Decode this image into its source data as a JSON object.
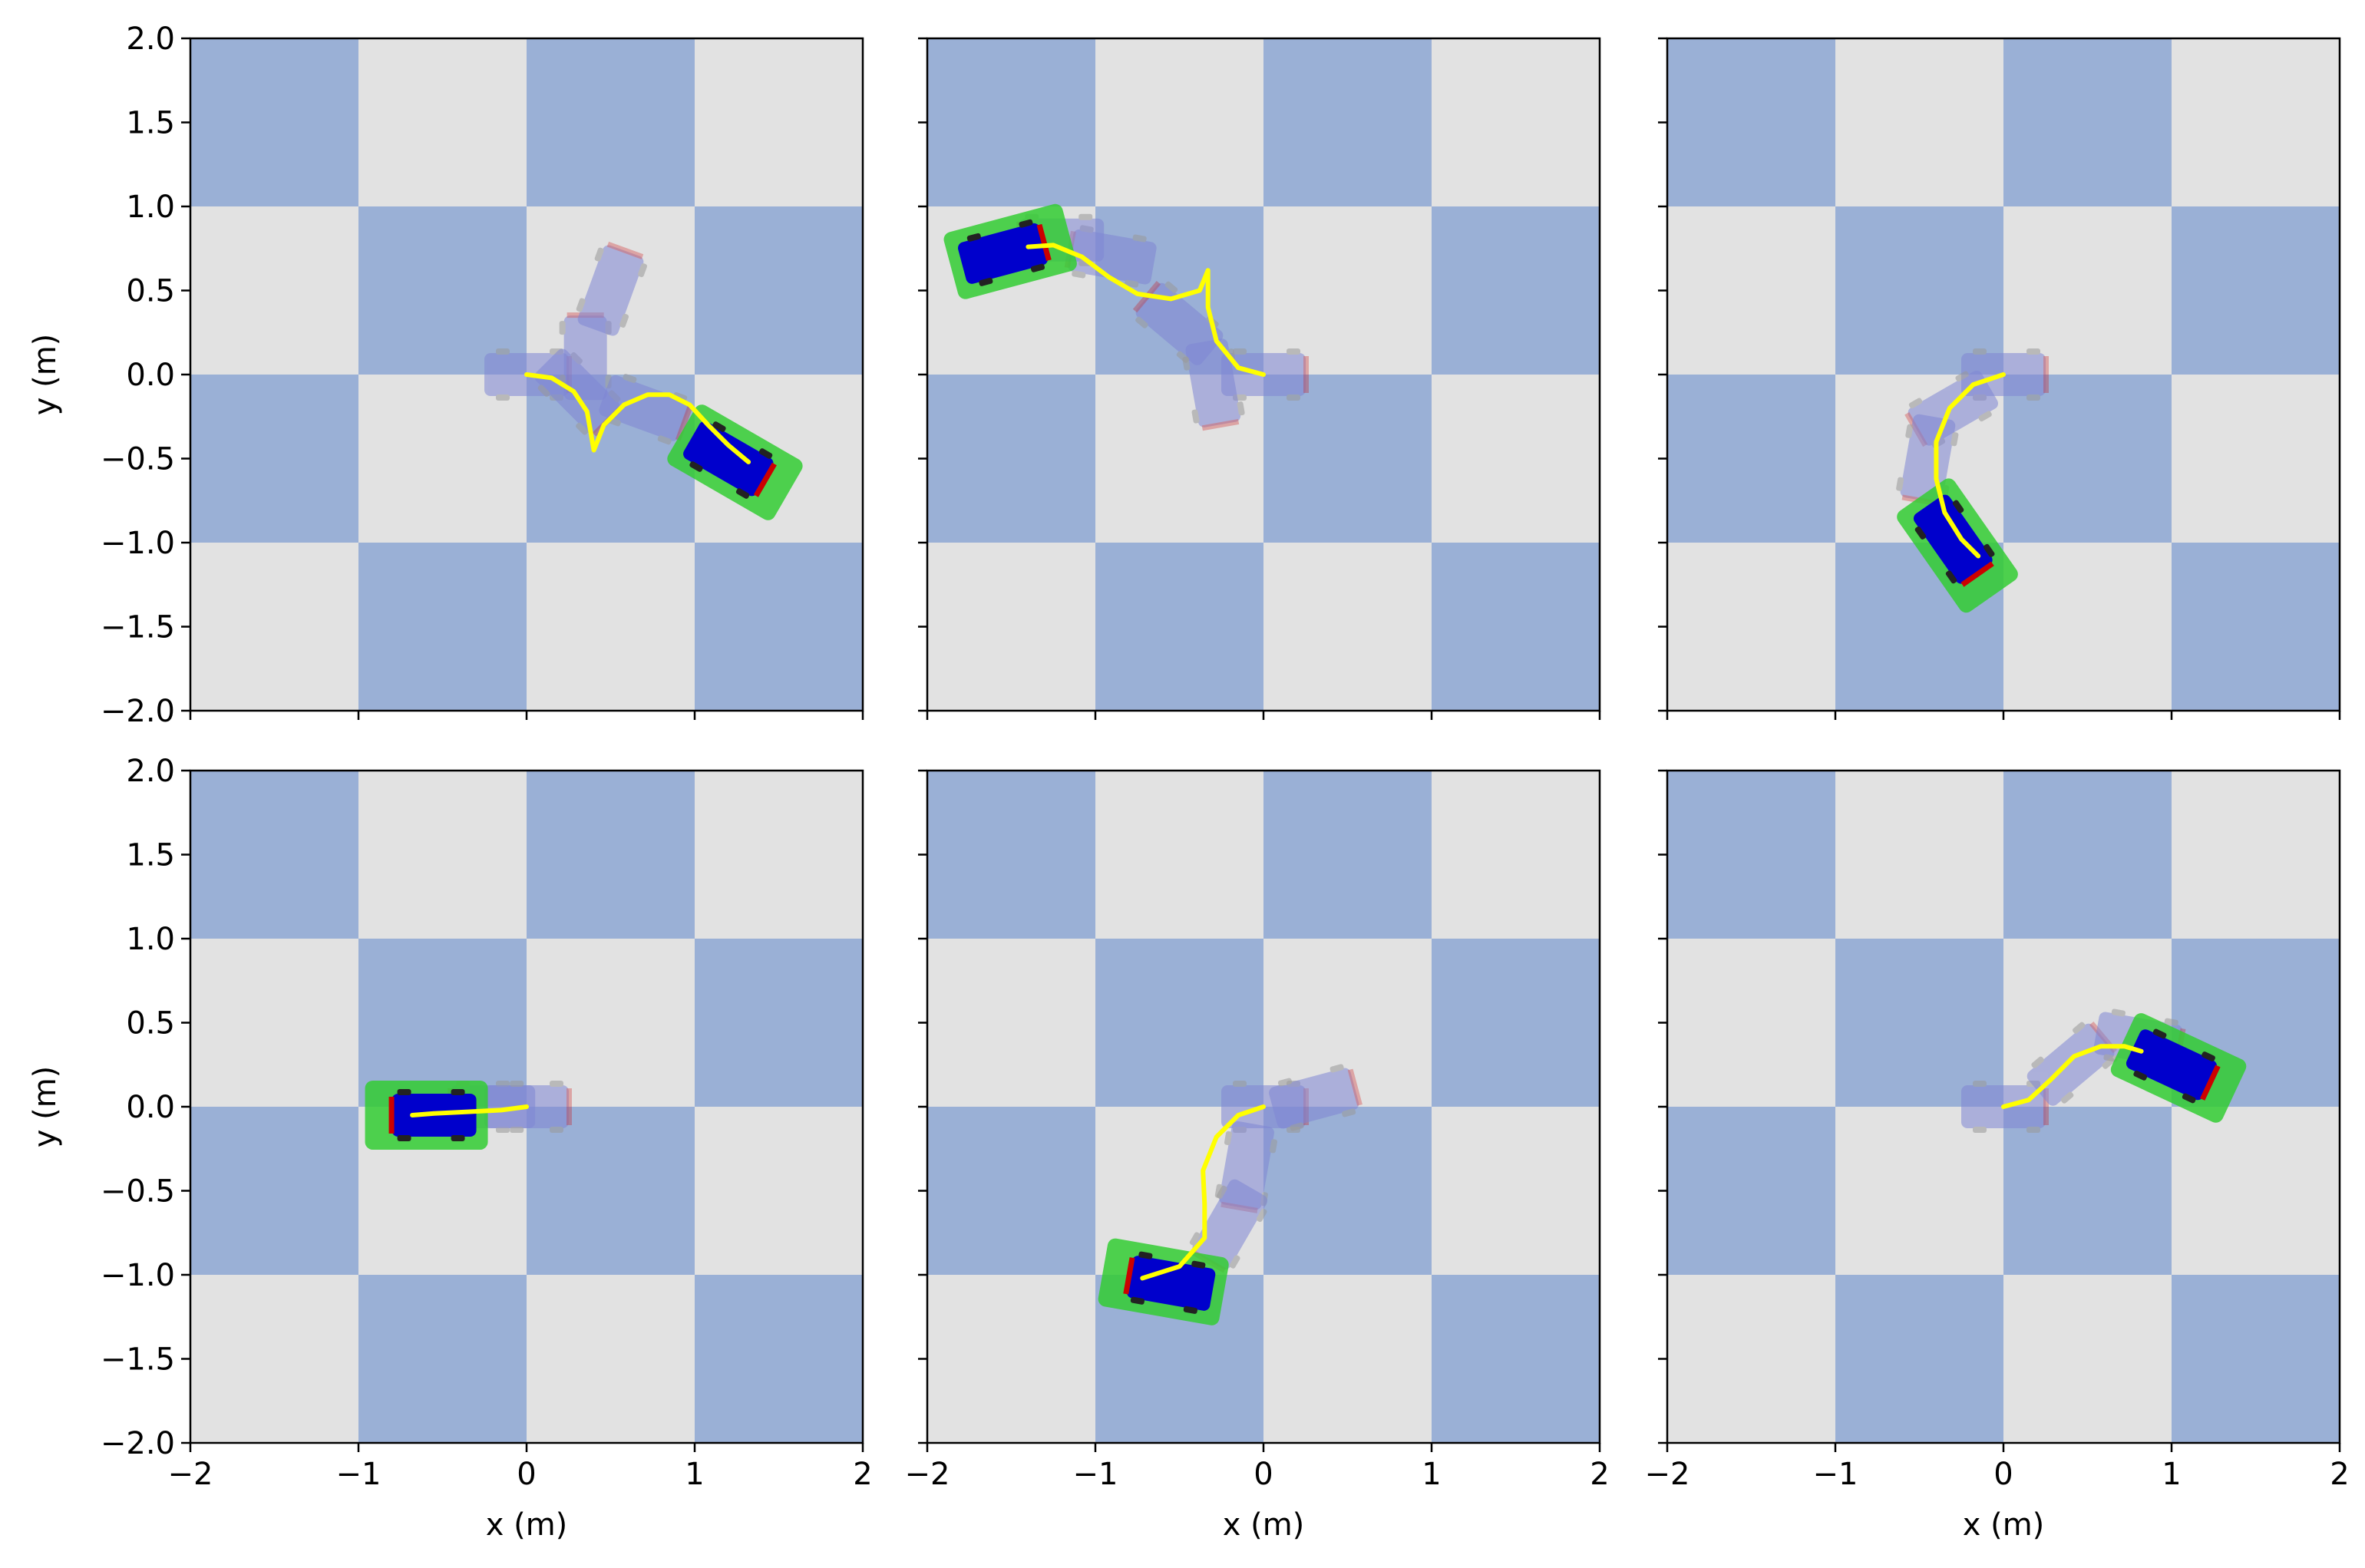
{
  "figure": {
    "xlabel": "x (m)",
    "ylabel": "y (m)",
    "x_ticks": [
      "−2",
      "−1",
      "0",
      "1",
      "2"
    ],
    "y_ticks": [
      "2.0",
      "1.5",
      "1.0",
      "0.5",
      "0.0",
      "−0.5",
      "−1.0",
      "−1.5",
      "−2.0"
    ],
    "colors": {
      "checker_blue": "#9ab0d6",
      "checker_grey": "#e2e2e2",
      "trajectory": "#ffff00",
      "car_ghost": "#7f86d4",
      "car_final": "#0000cc",
      "footprint": "#33cc33",
      "bumper": "#cc0000"
    }
  },
  "chart_data": [
    {
      "type": "line",
      "xlim": [
        -2,
        2
      ],
      "ylim": [
        -2,
        2
      ],
      "grid": false,
      "background": "checkerboard, 1 m cells",
      "series": [
        {
          "values": [
            [
              0,
              0
            ],
            [
              0.15,
              -0.02
            ],
            [
              0.28,
              -0.1
            ],
            [
              0.36,
              -0.22
            ],
            [
              0.4,
              -0.45
            ],
            [
              0.46,
              -0.3
            ],
            [
              0.58,
              -0.18
            ],
            [
              0.72,
              -0.12
            ],
            [
              0.85,
              -0.12
            ],
            [
              0.97,
              -0.18
            ],
            [
              1.08,
              -0.3
            ],
            [
              1.2,
              -0.42
            ],
            [
              1.32,
              -0.52
            ]
          ]
        }
      ],
      "final_pose": {
        "x": 1.2,
        "y": -0.5,
        "heading_deg": -30
      },
      "ghost_poses": [
        {
          "x": 0.0,
          "y": 0.0,
          "heading_deg": 0
        },
        {
          "x": 0.3,
          "y": -0.1,
          "heading_deg": -45
        },
        {
          "x": 0.35,
          "y": 0.1,
          "heading_deg": 90
        },
        {
          "x": 0.5,
          "y": 0.5,
          "heading_deg": 70
        },
        {
          "x": 0.7,
          "y": -0.2,
          "heading_deg": -20
        }
      ]
    },
    {
      "type": "line",
      "xlim": [
        -2,
        2
      ],
      "ylim": [
        -2,
        2
      ],
      "grid": false,
      "series": [
        {
          "values": [
            [
              0,
              0
            ],
            [
              -0.15,
              0.04
            ],
            [
              -0.28,
              0.2
            ],
            [
              -0.33,
              0.4
            ],
            [
              -0.33,
              0.62
            ],
            [
              -0.38,
              0.5
            ],
            [
              -0.55,
              0.45
            ],
            [
              -0.75,
              0.48
            ],
            [
              -0.92,
              0.58
            ],
            [
              -1.08,
              0.7
            ],
            [
              -1.25,
              0.77
            ],
            [
              -1.4,
              0.76
            ]
          ]
        }
      ],
      "final_pose": {
        "x": -1.55,
        "y": 0.72,
        "heading_deg": 15
      },
      "ghost_poses": [
        {
          "x": 0.0,
          "y": 0.0,
          "heading_deg": 0
        },
        {
          "x": -0.3,
          "y": -0.05,
          "heading_deg": -80
        },
        {
          "x": -0.5,
          "y": 0.3,
          "heading_deg": 140
        },
        {
          "x": -0.9,
          "y": 0.7,
          "heading_deg": 170
        },
        {
          "x": -1.2,
          "y": 0.8,
          "heading_deg": 180
        }
      ]
    },
    {
      "type": "line",
      "xlim": [
        -2,
        2
      ],
      "ylim": [
        -2,
        2
      ],
      "grid": false,
      "series": [
        {
          "values": [
            [
              0,
              0
            ],
            [
              -0.18,
              -0.06
            ],
            [
              -0.32,
              -0.2
            ],
            [
              -0.4,
              -0.4
            ],
            [
              -0.4,
              -0.62
            ],
            [
              -0.35,
              -0.82
            ],
            [
              -0.25,
              -0.98
            ],
            [
              -0.15,
              -1.08
            ]
          ]
        }
      ],
      "final_pose": {
        "x": -0.3,
        "y": -0.98,
        "heading_deg": -55
      },
      "ghost_poses": [
        {
          "x": 0.0,
          "y": 0.0,
          "heading_deg": 0
        },
        {
          "x": -0.3,
          "y": -0.2,
          "heading_deg": -150
        },
        {
          "x": -0.45,
          "y": -0.5,
          "heading_deg": -100
        }
      ]
    },
    {
      "type": "line",
      "xlim": [
        -2,
        2
      ],
      "ylim": [
        -2,
        2
      ],
      "grid": false,
      "series": [
        {
          "values": [
            [
              0,
              0
            ],
            [
              -0.15,
              -0.02
            ],
            [
              -0.35,
              -0.03
            ],
            [
              -0.55,
              -0.04
            ],
            [
              -0.68,
              -0.05
            ]
          ]
        }
      ],
      "final_pose": {
        "x": -0.55,
        "y": -0.05,
        "heading_deg": 180
      },
      "ghost_poses": [
        {
          "x": 0.0,
          "y": 0.0,
          "heading_deg": 0
        },
        {
          "x": -0.2,
          "y": 0.0,
          "heading_deg": 180
        }
      ]
    },
    {
      "type": "line",
      "xlim": [
        -2,
        2
      ],
      "ylim": [
        -2,
        2
      ],
      "grid": false,
      "series": [
        {
          "values": [
            [
              0,
              0
            ],
            [
              -0.15,
              -0.05
            ],
            [
              -0.28,
              -0.18
            ],
            [
              -0.36,
              -0.38
            ],
            [
              -0.35,
              -0.58
            ],
            [
              -0.35,
              -0.78
            ],
            [
              -0.5,
              -0.95
            ],
            [
              -0.72,
              -1.02
            ]
          ]
        }
      ],
      "final_pose": {
        "x": -0.55,
        "y": -1.05,
        "heading_deg": 170
      },
      "ghost_poses": [
        {
          "x": 0.0,
          "y": 0.0,
          "heading_deg": 0
        },
        {
          "x": 0.3,
          "y": 0.05,
          "heading_deg": 15
        },
        {
          "x": -0.1,
          "y": -0.35,
          "heading_deg": -100
        },
        {
          "x": -0.2,
          "y": -0.7,
          "heading_deg": -120
        }
      ]
    },
    {
      "type": "line",
      "xlim": [
        -2,
        2
      ],
      "ylim": [
        -2,
        2
      ],
      "grid": false,
      "series": [
        {
          "values": [
            [
              0,
              0
            ],
            [
              0.15,
              0.04
            ],
            [
              0.28,
              0.16
            ],
            [
              0.42,
              0.3
            ],
            [
              0.58,
              0.36
            ],
            [
              0.72,
              0.36
            ],
            [
              0.82,
              0.33
            ]
          ]
        }
      ],
      "final_pose": {
        "x": 1.0,
        "y": 0.25,
        "heading_deg": -25
      },
      "ghost_poses": [
        {
          "x": 0.0,
          "y": 0.0,
          "heading_deg": 0
        },
        {
          "x": 0.4,
          "y": 0.25,
          "heading_deg": 40
        },
        {
          "x": 0.8,
          "y": 0.4,
          "heading_deg": -10
        }
      ]
    }
  ]
}
